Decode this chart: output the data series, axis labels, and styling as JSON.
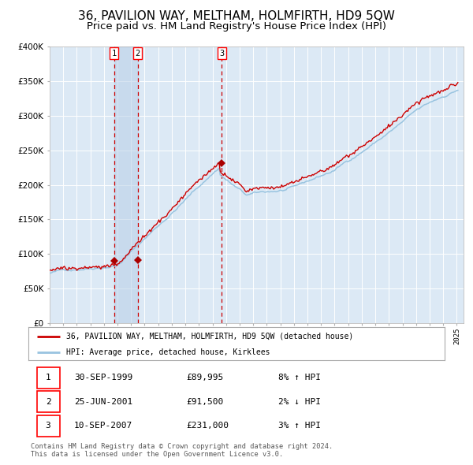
{
  "title": "36, PAVILION WAY, MELTHAM, HOLMFIRTH, HD9 5QW",
  "subtitle": "Price paid vs. HM Land Registry's House Price Index (HPI)",
  "title_fontsize": 11,
  "subtitle_fontsize": 9.5,
  "plot_bg_color": "#dce9f5",
  "fig_bg_color": "#ffffff",
  "red_line_color": "#cc0000",
  "blue_line_color": "#99c4e0",
  "sale_marker_color": "#aa0000",
  "vline_color": "#cc0000",
  "highlight_color": "#b8cfe8",
  "ylim": [
    0,
    400000
  ],
  "yticks": [
    0,
    50000,
    100000,
    150000,
    200000,
    250000,
    300000,
    350000,
    400000
  ],
  "ytick_labels": [
    "£0",
    "£50K",
    "£100K",
    "£150K",
    "£200K",
    "£250K",
    "£300K",
    "£350K",
    "£400K"
  ],
  "legend_red_label": "36, PAVILION WAY, MELTHAM, HOLMFIRTH, HD9 5QW (detached house)",
  "legend_blue_label": "HPI: Average price, detached house, Kirklees",
  "sale_prices": [
    89995,
    91500,
    231000
  ],
  "sale_labels": [
    "1",
    "2",
    "3"
  ],
  "sale_numeric": [
    1999.748,
    2001.478,
    2007.692
  ],
  "table_rows": [
    {
      "label": "1",
      "date": "30-SEP-1999",
      "price": "£89,995",
      "hpi": "8% ↑ HPI"
    },
    {
      "label": "2",
      "date": "25-JUN-2001",
      "price": "£91,500",
      "hpi": "2% ↓ HPI"
    },
    {
      "label": "3",
      "date": "10-SEP-2007",
      "price": "£231,000",
      "hpi": "3% ↑ HPI"
    }
  ],
  "footer": "Contains HM Land Registry data © Crown copyright and database right 2024.\nThis data is licensed under the Open Government Licence v3.0."
}
